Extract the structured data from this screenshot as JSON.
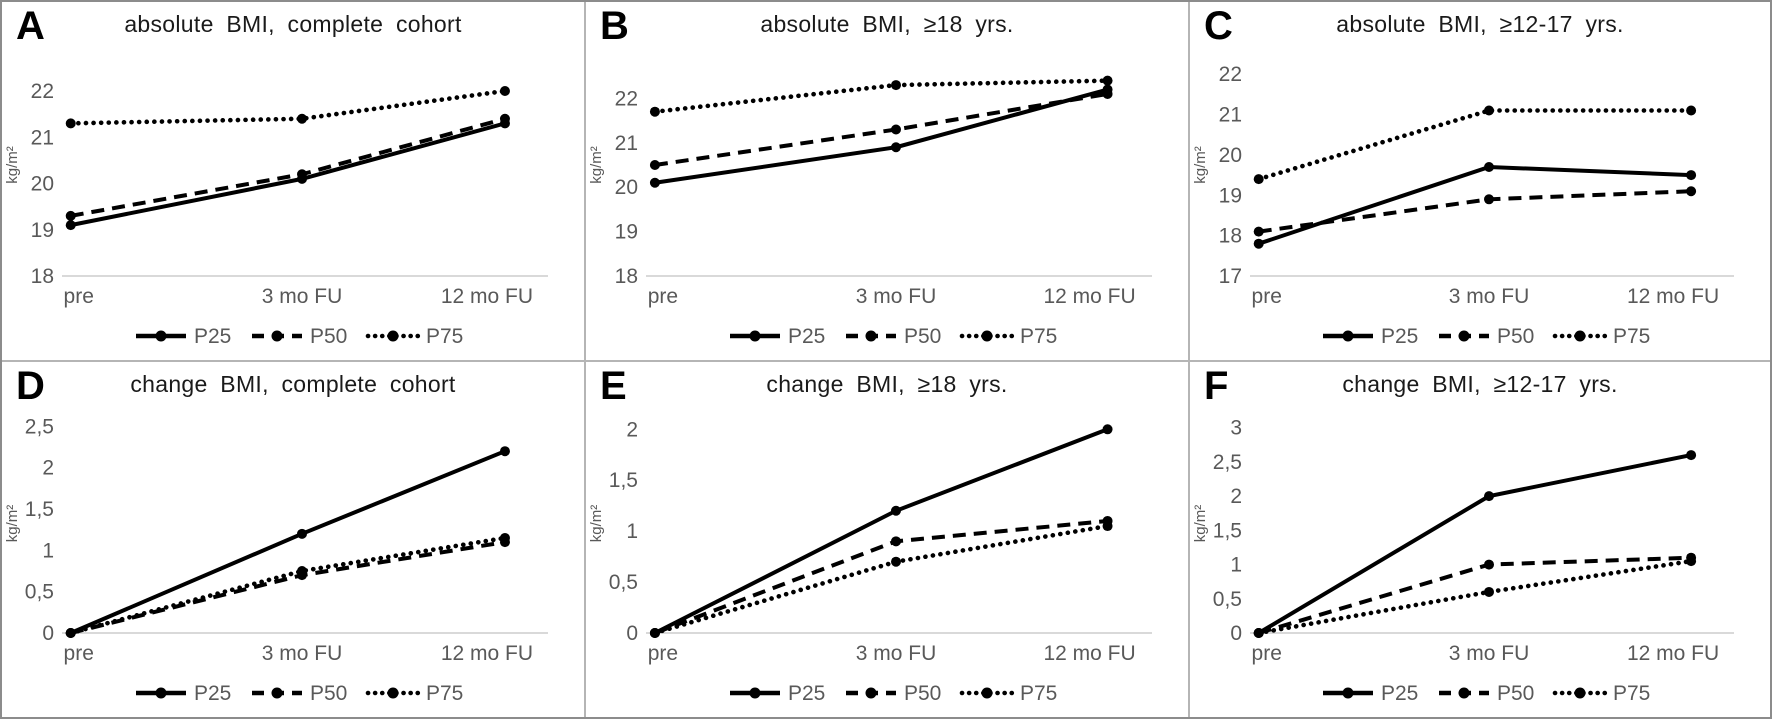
{
  "colors": {
    "line": "#000000",
    "axis_text": "#595959",
    "title_text": "#1a1a1a",
    "baseline": "#d9d9d9",
    "panel_border": "#b5b5b5",
    "outer_border": "#8c8c8c",
    "background": "#ffffff"
  },
  "legend": {
    "labels": [
      "P25",
      "P50",
      "P75"
    ],
    "position": "bottom"
  },
  "chart_data": [
    {
      "letter": "A",
      "title": "absolute BMI, complete cohort",
      "type": "line",
      "x_categories": [
        "pre",
        "3 mo FU",
        "12 mo FU"
      ],
      "ylabel": "kg/m²",
      "y_tick_labels": [
        "22",
        "21",
        "20",
        "19",
        "18"
      ],
      "y_tick_values": [
        22,
        21,
        20,
        19,
        18
      ],
      "ylim": [
        18,
        22.8
      ],
      "grid": false,
      "series": [
        {
          "name": "P25",
          "style": "solid",
          "values": [
            19.1,
            20.1,
            21.3
          ]
        },
        {
          "name": "P50",
          "style": "dashed",
          "values": [
            19.3,
            20.2,
            21.4
          ]
        },
        {
          "name": "P75",
          "style": "dotted",
          "values": [
            21.3,
            21.4,
            22.0
          ]
        }
      ]
    },
    {
      "letter": "B",
      "title": "absolute BMI, ≥18 yrs.",
      "type": "line",
      "x_categories": [
        "pre",
        "3 mo FU",
        "12 mo FU"
      ],
      "ylabel": "kg/m²",
      "y_tick_labels": [
        "22",
        "21",
        "20",
        "19",
        "18"
      ],
      "y_tick_values": [
        22,
        21,
        20,
        19,
        18
      ],
      "ylim": [
        18,
        23.0
      ],
      "grid": false,
      "series": [
        {
          "name": "P25",
          "style": "solid",
          "values": [
            20.1,
            20.9,
            22.2
          ]
        },
        {
          "name": "P50",
          "style": "dashed",
          "values": [
            20.5,
            21.3,
            22.1
          ]
        },
        {
          "name": "P75",
          "style": "dotted",
          "values": [
            21.7,
            22.3,
            22.4
          ]
        }
      ]
    },
    {
      "letter": "C",
      "title": "absolute BMI, ≥12-17 yrs.",
      "type": "line",
      "x_categories": [
        "pre",
        "3 mo FU",
        "12 mo FU"
      ],
      "ylabel": "kg/m²",
      "y_tick_labels": [
        "22",
        "21",
        "20",
        "19",
        "18",
        "17"
      ],
      "y_tick_values": [
        22,
        21,
        20,
        19,
        18,
        17
      ],
      "ylim": [
        17,
        22.5
      ],
      "grid": false,
      "series": [
        {
          "name": "P25",
          "style": "solid",
          "values": [
            17.8,
            19.7,
            19.5
          ]
        },
        {
          "name": "P50",
          "style": "dashed",
          "values": [
            18.1,
            18.9,
            19.1
          ]
        },
        {
          "name": "P75",
          "style": "dotted",
          "values": [
            19.4,
            21.1,
            21.1
          ]
        }
      ]
    },
    {
      "letter": "D",
      "title": "change BMI, complete cohort",
      "type": "line",
      "x_categories": [
        "pre",
        "3 mo FU",
        "12 mo FU"
      ],
      "ylabel": "kg/m²",
      "y_tick_labels": [
        "2,5",
        "2",
        "1,5",
        "1",
        "0,5",
        "0"
      ],
      "y_tick_values": [
        2.5,
        2,
        1.5,
        1,
        0.5,
        0
      ],
      "ylim": [
        0,
        2.65
      ],
      "grid": false,
      "series": [
        {
          "name": "P25",
          "style": "solid",
          "values": [
            0,
            1.2,
            2.2
          ]
        },
        {
          "name": "P50",
          "style": "dashed",
          "values": [
            0,
            0.7,
            1.1
          ]
        },
        {
          "name": "P75",
          "style": "dotted",
          "values": [
            0,
            0.75,
            1.15
          ]
        }
      ]
    },
    {
      "letter": "E",
      "title": "change BMI, ≥18 yrs.",
      "type": "line",
      "x_categories": [
        "pre",
        "3 mo FU",
        "12 mo FU"
      ],
      "ylabel": "kg/m²",
      "y_tick_labels": [
        "2",
        "1,5",
        "1",
        "0,5",
        "0"
      ],
      "y_tick_values": [
        2,
        1.5,
        1,
        0.5,
        0
      ],
      "ylim": [
        0,
        2.15
      ],
      "grid": false,
      "series": [
        {
          "name": "P25",
          "style": "solid",
          "values": [
            0,
            1.2,
            2.0
          ]
        },
        {
          "name": "P50",
          "style": "dashed",
          "values": [
            0,
            0.9,
            1.1
          ]
        },
        {
          "name": "P75",
          "style": "dotted",
          "values": [
            0,
            0.7,
            1.05
          ]
        }
      ]
    },
    {
      "letter": "F",
      "title": "change BMI, ≥12-17 yrs.",
      "type": "line",
      "x_categories": [
        "pre",
        "3 mo FU",
        "12 mo FU"
      ],
      "ylabel": "kg/m²",
      "y_tick_labels": [
        "3",
        "2,5",
        "2",
        "1,5",
        "1",
        "0,5",
        "0"
      ],
      "y_tick_values": [
        3,
        2.5,
        2,
        1.5,
        1,
        0.5,
        0
      ],
      "ylim": [
        0,
        3.2
      ],
      "grid": false,
      "series": [
        {
          "name": "P25",
          "style": "solid",
          "values": [
            0,
            2.0,
            2.6
          ]
        },
        {
          "name": "P50",
          "style": "dashed",
          "values": [
            0,
            1.0,
            1.1
          ]
        },
        {
          "name": "P75",
          "style": "dotted",
          "values": [
            0,
            0.6,
            1.05
          ]
        }
      ]
    }
  ]
}
